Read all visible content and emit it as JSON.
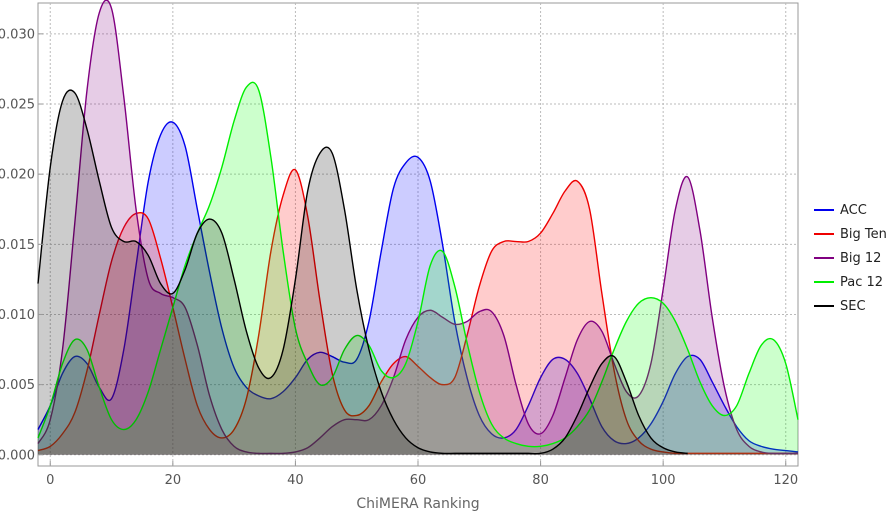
{
  "chart_data": {
    "type": "area",
    "title": "",
    "xlabel": "ChiMERA Ranking",
    "ylabel": "",
    "xlim": [
      -2,
      122
    ],
    "ylim": [
      -0.0008,
      0.0322
    ],
    "x_ticks": [
      0,
      20,
      40,
      60,
      80,
      100,
      120
    ],
    "y_ticks": [
      0.0,
      0.005,
      0.01,
      0.015,
      0.02,
      0.025,
      0.03
    ],
    "x_tick_labels": [
      "0",
      "20",
      "40",
      "60",
      "80",
      "100",
      "120"
    ],
    "y_tick_labels": [
      "0.000",
      "0.005",
      "0.010",
      "0.015",
      "0.020",
      "0.025",
      "0.030"
    ],
    "grid": true,
    "legend_position": "right",
    "series": [
      {
        "name": "ACC",
        "color": "#0000ee",
        "fill": "rgba(0,0,255,0.2)",
        "x": [
          -2,
          0,
          2,
          4,
          6,
          8,
          10,
          12,
          14,
          16,
          18,
          20,
          22,
          24,
          26,
          28,
          30,
          32,
          34,
          36,
          38,
          40,
          42,
          44,
          46,
          48,
          50,
          52,
          54,
          56,
          58,
          60,
          62,
          64,
          66,
          68,
          70,
          72,
          74,
          76,
          78,
          80,
          82,
          84,
          86,
          88,
          90,
          92,
          94,
          96,
          98,
          100,
          102,
          104,
          106,
          108,
          110,
          112,
          114,
          116,
          118,
          120,
          122
        ],
        "values": [
          0.0018,
          0.0035,
          0.0058,
          0.007,
          0.0065,
          0.0048,
          0.004,
          0.0075,
          0.0135,
          0.0195,
          0.0228,
          0.0237,
          0.022,
          0.0175,
          0.013,
          0.009,
          0.0062,
          0.0048,
          0.0042,
          0.004,
          0.0045,
          0.0055,
          0.0068,
          0.0073,
          0.007,
          0.0066,
          0.0068,
          0.0095,
          0.0145,
          0.019,
          0.0208,
          0.0212,
          0.0195,
          0.015,
          0.0095,
          0.0055,
          0.0028,
          0.0015,
          0.0012,
          0.0018,
          0.0035,
          0.0055,
          0.0068,
          0.0068,
          0.0058,
          0.004,
          0.002,
          0.001,
          0.0008,
          0.0012,
          0.0022,
          0.0038,
          0.0058,
          0.007,
          0.0068,
          0.0052,
          0.0035,
          0.002,
          0.001,
          0.0006,
          0.0004,
          0.0003,
          0.0002
        ]
      },
      {
        "name": "Big Ten",
        "color": "#ee0000",
        "fill": "rgba(255,0,0,0.2)",
        "x": [
          -2,
          0,
          2,
          4,
          6,
          8,
          10,
          12,
          14,
          16,
          18,
          20,
          22,
          24,
          26,
          28,
          30,
          32,
          34,
          36,
          38,
          40,
          42,
          44,
          46,
          48,
          50,
          52,
          54,
          56,
          58,
          60,
          62,
          64,
          66,
          68,
          70,
          72,
          74,
          76,
          78,
          80,
          82,
          84,
          86,
          88,
          90,
          92,
          94,
          96,
          98,
          100,
          102,
          104,
          106,
          108,
          110,
          112,
          114,
          116,
          118,
          120,
          122
        ],
        "values": [
          0.0003,
          0.0006,
          0.0015,
          0.003,
          0.006,
          0.01,
          0.0138,
          0.0162,
          0.0172,
          0.0168,
          0.014,
          0.0105,
          0.0068,
          0.0035,
          0.0018,
          0.0012,
          0.0018,
          0.004,
          0.0085,
          0.0145,
          0.0185,
          0.0203,
          0.017,
          0.011,
          0.0058,
          0.0032,
          0.0028,
          0.0035,
          0.0052,
          0.0065,
          0.007,
          0.0063,
          0.0055,
          0.005,
          0.0055,
          0.0085,
          0.012,
          0.0145,
          0.0152,
          0.0152,
          0.0152,
          0.0158,
          0.0172,
          0.0188,
          0.0195,
          0.0175,
          0.0115,
          0.006,
          0.0025,
          0.001,
          0.0004,
          0.0002,
          0.0001,
          0.0001,
          0.0001,
          0.0001,
          0.0001,
          0.0001,
          0.0001,
          0.0001,
          0.0001,
          0.0001,
          0.0001
        ]
      },
      {
        "name": "Big 12",
        "color": "#800080",
        "fill": "rgba(128,0,128,0.2)",
        "x": [
          -2,
          0,
          2,
          4,
          6,
          8,
          10,
          12,
          14,
          16,
          18,
          20,
          22,
          24,
          26,
          28,
          30,
          32,
          34,
          36,
          38,
          40,
          42,
          44,
          46,
          48,
          50,
          52,
          54,
          56,
          58,
          60,
          62,
          64,
          66,
          68,
          70,
          72,
          74,
          76,
          78,
          80,
          82,
          84,
          86,
          88,
          90,
          92,
          94,
          96,
          98,
          100,
          102,
          104,
          106,
          108,
          110,
          112,
          114,
          116,
          118,
          120,
          122
        ],
        "values": [
          0.0008,
          0.0025,
          0.0075,
          0.0165,
          0.026,
          0.0315,
          0.0318,
          0.0255,
          0.0175,
          0.0125,
          0.0115,
          0.0112,
          0.0105,
          0.0078,
          0.0042,
          0.0018,
          0.0006,
          0.0002,
          0.0001,
          0.0001,
          0.0001,
          0.0002,
          0.0005,
          0.0012,
          0.002,
          0.0025,
          0.0025,
          0.0025,
          0.0035,
          0.0055,
          0.0082,
          0.0098,
          0.0103,
          0.0098,
          0.0093,
          0.0095,
          0.0102,
          0.0102,
          0.0085,
          0.005,
          0.0022,
          0.0015,
          0.0028,
          0.0055,
          0.0082,
          0.0095,
          0.0088,
          0.0065,
          0.0045,
          0.0042,
          0.0065,
          0.0118,
          0.0175,
          0.0198,
          0.016,
          0.0098,
          0.0048,
          0.0018,
          0.0006,
          0.0002,
          0.0001,
          0.0001,
          0.0001
        ]
      },
      {
        "name": "Pac 12",
        "color": "#00ee00",
        "fill": "rgba(0,255,0,0.2)",
        "x": [
          -2,
          0,
          2,
          4,
          6,
          8,
          10,
          12,
          14,
          16,
          18,
          20,
          22,
          24,
          26,
          28,
          30,
          32,
          34,
          36,
          38,
          40,
          42,
          44,
          46,
          48,
          50,
          52,
          54,
          56,
          58,
          60,
          62,
          64,
          66,
          68,
          70,
          72,
          74,
          76,
          78,
          80,
          82,
          84,
          86,
          88,
          90,
          92,
          94,
          96,
          98,
          100,
          102,
          104,
          106,
          108,
          110,
          112,
          114,
          116,
          118,
          120,
          122
        ],
        "values": [
          0.0012,
          0.0035,
          0.0065,
          0.0082,
          0.0075,
          0.0048,
          0.0025,
          0.0018,
          0.0025,
          0.0045,
          0.0075,
          0.0105,
          0.0135,
          0.0158,
          0.0178,
          0.0205,
          0.0238,
          0.0262,
          0.026,
          0.0212,
          0.0145,
          0.009,
          0.0065,
          0.005,
          0.0055,
          0.0075,
          0.0085,
          0.0078,
          0.006,
          0.0055,
          0.0065,
          0.0095,
          0.0135,
          0.0145,
          0.012,
          0.008,
          0.0045,
          0.0022,
          0.0012,
          0.0008,
          0.0006,
          0.0006,
          0.0008,
          0.0012,
          0.002,
          0.0032,
          0.0052,
          0.0075,
          0.0095,
          0.0108,
          0.0112,
          0.0108,
          0.0095,
          0.0075,
          0.0052,
          0.0035,
          0.0028,
          0.0035,
          0.0058,
          0.0078,
          0.0082,
          0.0065,
          0.0025
        ]
      },
      {
        "name": "SEC",
        "color": "#000000",
        "fill": "rgba(0,0,0,0.2)",
        "x": [
          -2,
          0,
          2,
          4,
          6,
          8,
          10,
          12,
          14,
          16,
          18,
          20,
          22,
          24,
          26,
          28,
          30,
          32,
          34,
          36,
          38,
          40,
          42,
          44,
          46,
          48,
          50,
          52,
          54,
          56,
          58,
          60,
          62,
          64,
          66,
          68,
          70,
          72,
          74,
          76,
          78,
          80,
          82,
          84,
          86,
          88,
          90,
          92,
          94,
          96,
          98,
          100,
          102,
          104
        ],
        "values": [
          0.0122,
          0.0205,
          0.0252,
          0.0258,
          0.0232,
          0.0195,
          0.0162,
          0.0152,
          0.0152,
          0.0142,
          0.0122,
          0.0115,
          0.0132,
          0.0158,
          0.0168,
          0.0158,
          0.0125,
          0.0088,
          0.0062,
          0.0055,
          0.0075,
          0.0125,
          0.0188,
          0.0215,
          0.0215,
          0.0175,
          0.0118,
          0.0075,
          0.0045,
          0.0025,
          0.0012,
          0.0005,
          0.0002,
          0.0001,
          0.0001,
          0.0001,
          0.0001,
          0.0001,
          0.0001,
          0.0001,
          0.0001,
          0.0001,
          0.0004,
          0.0012,
          0.0028,
          0.0048,
          0.0065,
          0.007,
          0.0052,
          0.0028,
          0.0012,
          0.0005,
          0.0002,
          0.0001
        ]
      }
    ]
  }
}
